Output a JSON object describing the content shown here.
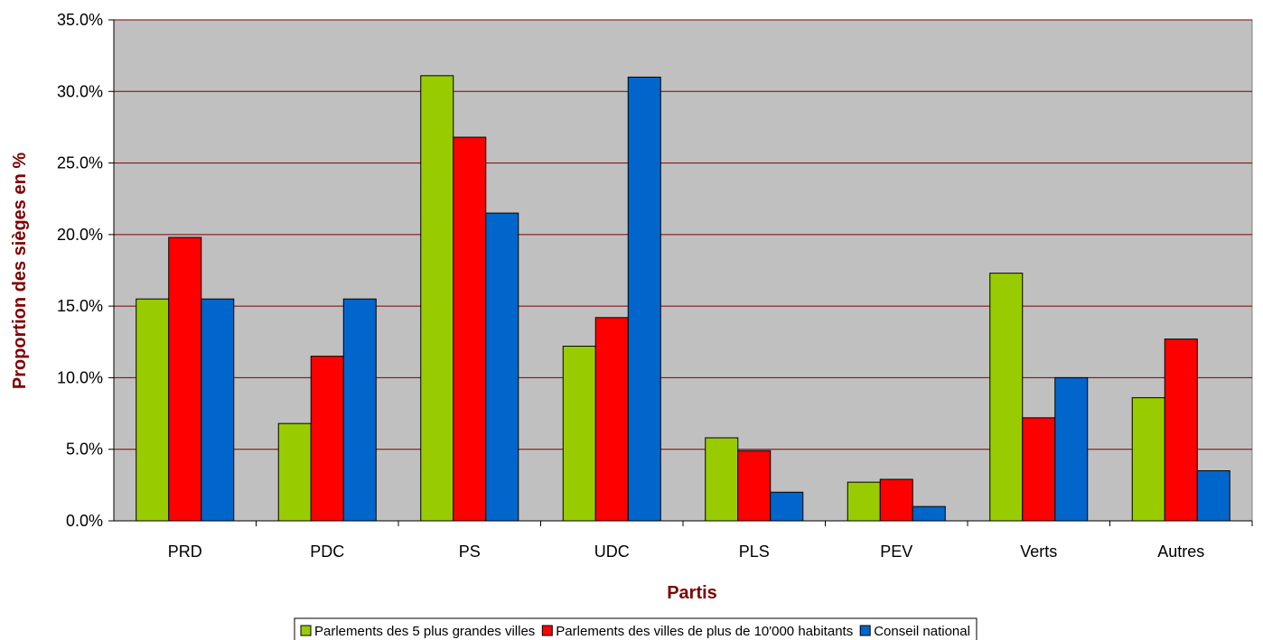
{
  "chart_data": {
    "type": "bar",
    "title": "",
    "xlabel": "Partis",
    "ylabel": "Proportion des sièges en %",
    "categories": [
      "PRD",
      "PDC",
      "PS",
      "UDC",
      "PLS",
      "PEV",
      "Verts",
      "Autres"
    ],
    "series": [
      {
        "name": "Parlements des 5 plus grandes villes",
        "color": "#99cc00",
        "values": [
          15.5,
          6.8,
          31.1,
          12.2,
          5.8,
          2.7,
          17.3,
          8.6
        ]
      },
      {
        "name": "Parlements des villes de plus de 10'000 habitants",
        "color": "#ff0000",
        "values": [
          19.8,
          11.5,
          26.8,
          14.2,
          4.9,
          2.9,
          7.2,
          12.7
        ]
      },
      {
        "name": "Conseil national",
        "color": "#0066cc",
        "values": [
          15.5,
          15.5,
          21.5,
          31.0,
          2.0,
          1.0,
          10.0,
          3.5
        ]
      }
    ],
    "ylim": [
      0,
      35
    ],
    "yticks": [
      0,
      5,
      10,
      15,
      20,
      25,
      30,
      35
    ],
    "ytick_format": "0.0%",
    "grid": true,
    "plot_background": "#c0c0c0",
    "gridline_color": "#800000",
    "legend_position": "bottom"
  }
}
